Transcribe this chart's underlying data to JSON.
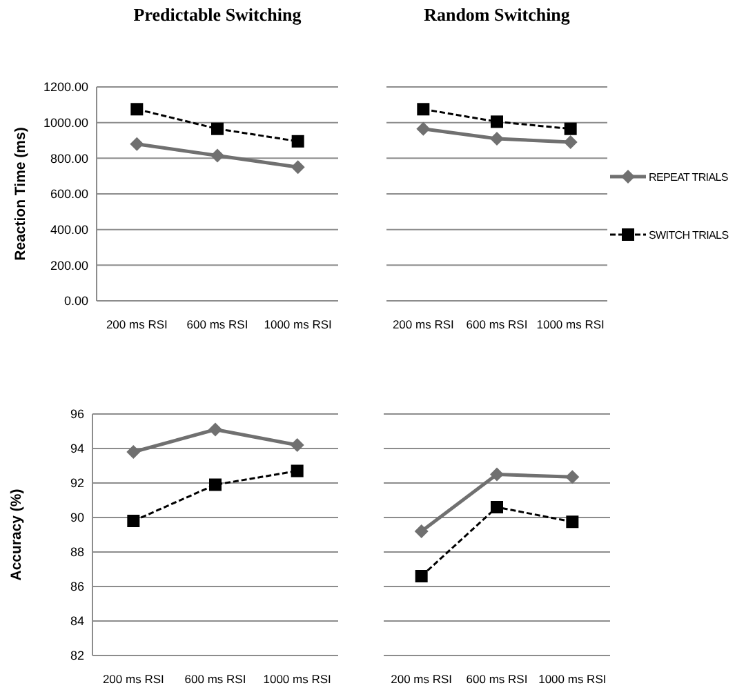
{
  "chart_data": [
    {
      "type": "line",
      "title": "Predictable Switching",
      "ylabel": "Reaction Time (ms)",
      "categories": [
        "200 ms RSI",
        "600 ms RSI",
        "1000 ms RSI"
      ],
      "ylim": [
        0,
        1200
      ],
      "yticks": [
        {
          "value": 0,
          "label": "0.00"
        },
        {
          "value": 200,
          "label": "200.00"
        },
        {
          "value": 400,
          "label": "400.00"
        },
        {
          "value": 600,
          "label": "600.00"
        },
        {
          "value": 800,
          "label": "800.00"
        },
        {
          "value": 1000,
          "label": "1000.00"
        },
        {
          "value": 1200,
          "label": "1200.00"
        }
      ],
      "grid": "y",
      "series": [
        {
          "color": "#707070",
          "marker": "diamond",
          "line_style": "solid",
          "values": [
            880,
            815,
            750
          ]
        },
        {
          "color": "#000000",
          "marker": "square",
          "line_style": "dashed",
          "values": [
            1075,
            965,
            895
          ]
        }
      ]
    },
    {
      "type": "line",
      "title": "Random Switching",
      "categories": [
        "200 ms RSI",
        "600 ms RSI",
        "1000 ms RSI"
      ],
      "ylim": [
        0,
        1200
      ],
      "yticks": [
        0,
        200,
        400,
        600,
        800,
        1000,
        1200
      ],
      "grid": "y",
      "tick_labels": "x",
      "legend": "right",
      "series": [
        {
          "name": "REPEAT TRIALS",
          "color": "#707070",
          "marker": "diamond",
          "line_style": "solid",
          "values": [
            965,
            910,
            890
          ]
        },
        {
          "name": "SWITCH TRIALS",
          "color": "#000000",
          "marker": "square",
          "line_style": "dashed",
          "values": [
            1075,
            1005,
            965
          ]
        }
      ]
    },
    {
      "type": "line",
      "ylabel": "Accuracy (%)",
      "categories": [
        "200 ms RSI",
        "600 ms RSI",
        "1000 ms RSI"
      ],
      "ylim": [
        82,
        96
      ],
      "yticks": [
        82,
        84,
        86,
        88,
        90,
        92,
        94,
        96
      ],
      "grid": "y",
      "series": [
        {
          "color": "#707070",
          "marker": "diamond",
          "line_style": "solid",
          "values": [
            93.8,
            95.1,
            94.2
          ]
        },
        {
          "color": "#000000",
          "marker": "square",
          "line_style": "dashed",
          "values": [
            89.8,
            91.9,
            92.7
          ]
        }
      ]
    },
    {
      "type": "line",
      "categories": [
        "200 ms RSI",
        "600 ms RSI",
        "1000 ms RSI"
      ],
      "ylim": [
        82,
        96
      ],
      "yticks": [
        82,
        84,
        86,
        88,
        90,
        92,
        94,
        96
      ],
      "grid": "y",
      "tick_labels": "x",
      "series": [
        {
          "color": "#707070",
          "marker": "diamond",
          "line_style": "solid",
          "values": [
            89.2,
            92.5,
            92.35
          ]
        },
        {
          "color": "#000000",
          "marker": "square",
          "line_style": "dashed",
          "values": [
            86.6,
            90.6,
            89.75
          ]
        }
      ]
    }
  ]
}
